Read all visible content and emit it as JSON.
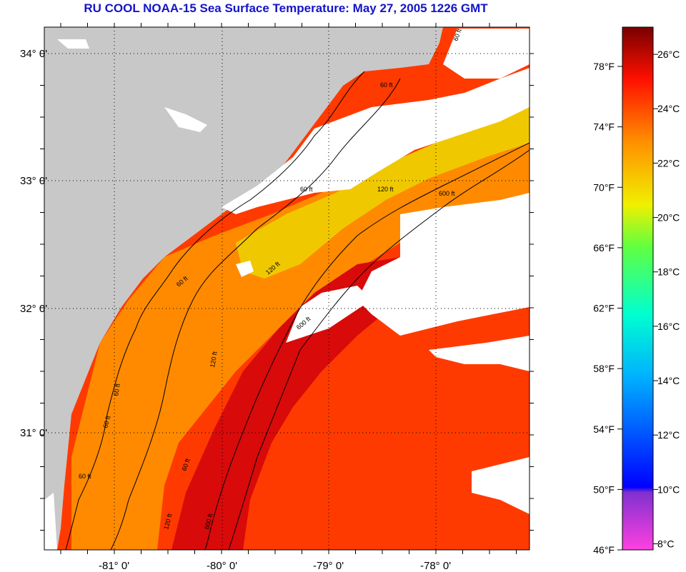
{
  "title": "RU COOL  NOAA-15  Sea Surface Temperature:  May 27, 2005 1226 GMT",
  "map": {
    "lat_labels": [
      "34° 0'",
      "33° 0'",
      "32° 0'",
      "31° 0'"
    ],
    "lon_labels": [
      "-81° 0'",
      "-80° 0'",
      "-79° 0'",
      "-78° 0'"
    ],
    "contour_labels": [
      "60 ft",
      "60 ft",
      "60 ft",
      "120 ft",
      "600 ft",
      "120 ft",
      "60 ft",
      "600 ft",
      "60 ft",
      "120 ft",
      "60 ft",
      "60 ft",
      "120 ft",
      "600 ft",
      "60 ft"
    ],
    "colors": {
      "land": "#c8c8c8",
      "cloud": "#ffffff",
      "water_warm": "#ff3a00",
      "water_hot": "#d80a0a",
      "water_mid": "#ff8a00",
      "water_cool": "#f0c800",
      "water_cold": "#60e0a0"
    }
  },
  "colorbar": {
    "fahrenheit": [
      "78°F",
      "74°F",
      "70°F",
      "66°F",
      "62°F",
      "58°F",
      "54°F",
      "50°F",
      "46°F"
    ],
    "celsius": [
      "26°C",
      "24°C",
      "22°C",
      "20°C",
      "18°C",
      "16°C",
      "14°C",
      "12°C",
      "10°C",
      "8°C"
    ]
  }
}
